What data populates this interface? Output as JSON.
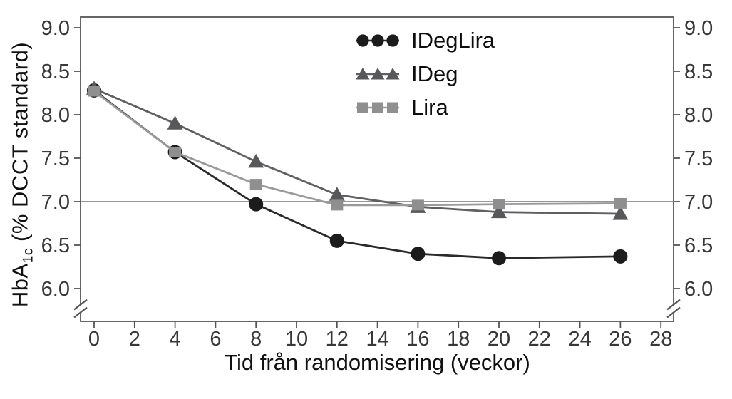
{
  "chart_data": {
    "type": "line",
    "title": "",
    "x_label": "Tid från randomisering (veckor)",
    "y_label": {
      "prefix": "HbA",
      "sub": "1c",
      "suffix": " (% DCCT standard)"
    },
    "x": [
      0,
      4,
      8,
      12,
      16,
      20,
      26
    ],
    "x_ticks": [
      0,
      2,
      4,
      6,
      8,
      10,
      12,
      14,
      16,
      18,
      20,
      22,
      24,
      26,
      28
    ],
    "y_ticks": [
      9.0,
      8.5,
      8.0,
      7.5,
      7.0,
      6.5,
      6.0
    ],
    "xlim": [
      0,
      28
    ],
    "ylim": [
      6.0,
      9.0
    ],
    "y_axis_break": true,
    "grid": false,
    "reference_line_y": 7.0,
    "legend_position": "inside-top-center",
    "series": [
      {
        "name": "IDegLira",
        "marker": "circle",
        "color": "#1c1c1c",
        "line_color": "#2a2a2a",
        "values": [
          8.28,
          7.57,
          6.97,
          6.55,
          6.4,
          6.35,
          6.37
        ]
      },
      {
        "name": "IDeg",
        "marker": "triangle",
        "color": "#58585a",
        "line_color": "#606062",
        "values": [
          8.3,
          7.9,
          7.46,
          7.08,
          6.94,
          6.88,
          6.86
        ]
      },
      {
        "name": "Lira",
        "marker": "square",
        "color": "#8f8f8f",
        "line_color": "#9a9a9a",
        "values": [
          8.27,
          7.57,
          7.2,
          6.96,
          6.96,
          6.97,
          6.98
        ]
      }
    ],
    "colors": {
      "axis": "#555555",
      "tick_text": "#383838",
      "reference_line": "#757575",
      "background": "#ffffff"
    }
  }
}
